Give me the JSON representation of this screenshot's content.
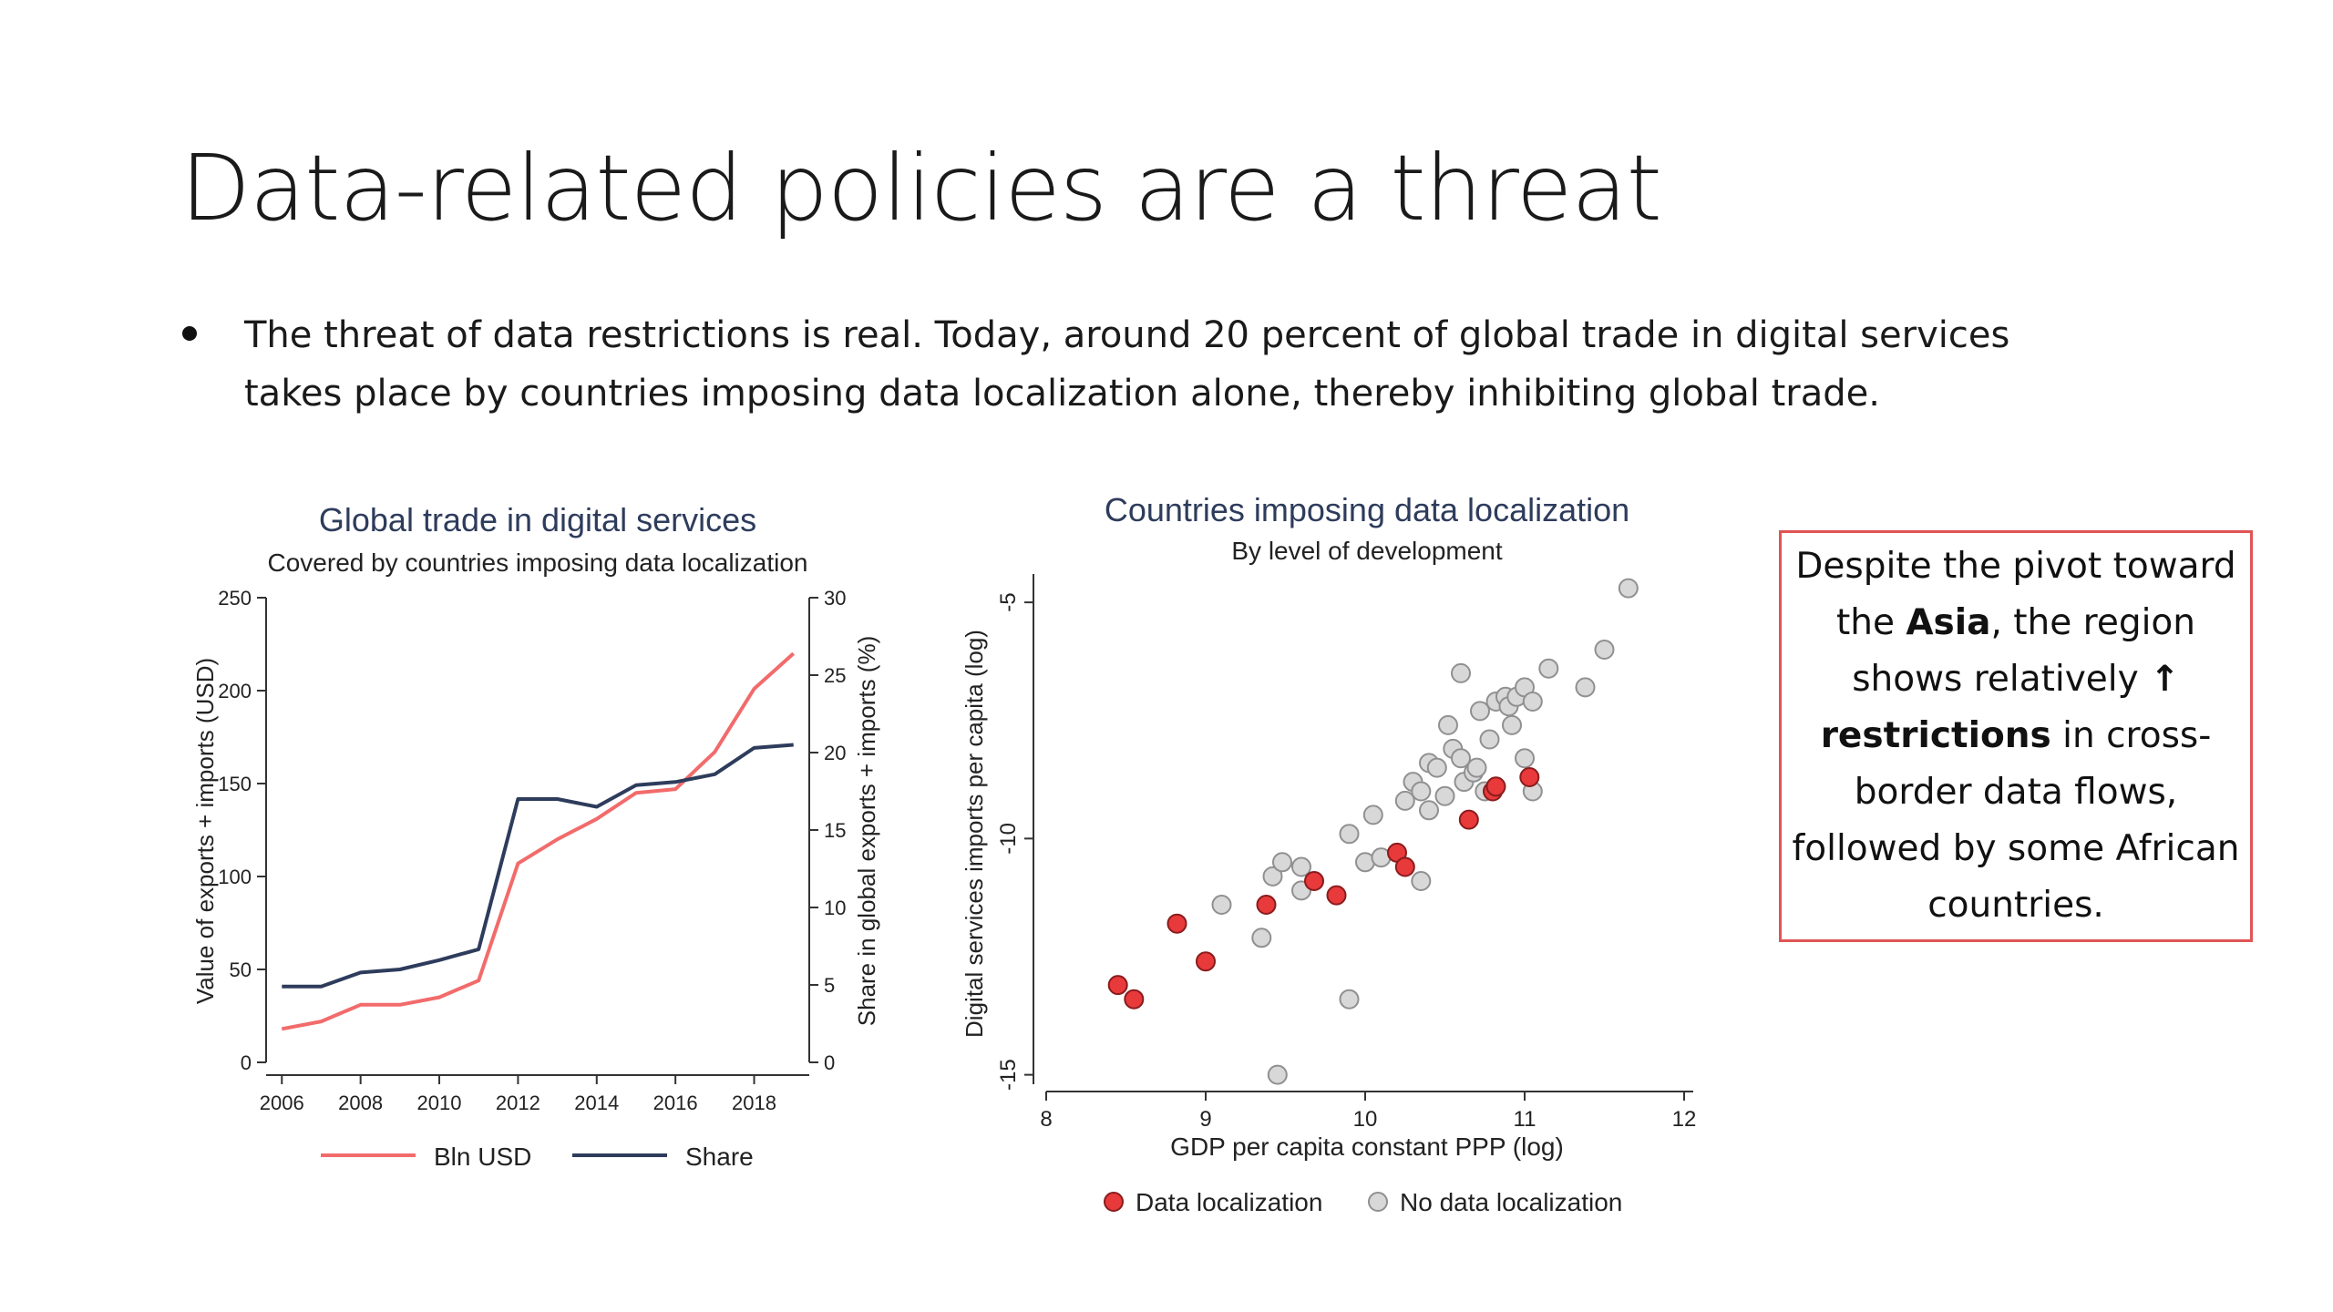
{
  "slide": {
    "title": "Data-related policies are a threat",
    "bullet": "The threat of data restrictions is real. Today, around 20 percent of global trade in digital services takes place by countries imposing data localization alone, thereby inhibiting global trade."
  },
  "callout": {
    "t1": "Despite the pivot toward the ",
    "b1": "Asia",
    "t2": ", the region shows relatively ",
    "arrow": "↑",
    "b2": "restrictions",
    "t3": " in cross-border data flows, followed by some African countries."
  },
  "chart_data": [
    {
      "type": "line",
      "title": "Global trade in digital services",
      "subtitle": "Covered by countries imposing data localization",
      "xlabel": "",
      "ylabel": "Value of exports + imports (USD)",
      "y2label": "Share in global exports + imports (%)",
      "x": [
        2006,
        2007,
        2008,
        2009,
        2010,
        2011,
        2012,
        2013,
        2014,
        2015,
        2016,
        2017,
        2018,
        2019
      ],
      "xticks": [
        2006,
        2008,
        2010,
        2012,
        2014,
        2016,
        2018
      ],
      "xlim": [
        2005.6,
        2019.4
      ],
      "ylim": [
        0,
        250
      ],
      "yticks": [
        0,
        50,
        100,
        150,
        200,
        250
      ],
      "y2lim": [
        0,
        30
      ],
      "y2ticks": [
        0,
        5,
        10,
        15,
        20,
        25,
        30
      ],
      "series": [
        {
          "name": "Bln USD",
          "axis": "left",
          "color": "#f26b6b",
          "values": [
            18,
            22,
            31,
            31,
            35,
            44,
            107,
            120,
            131,
            145,
            147,
            167,
            201,
            220
          ]
        },
        {
          "name": "Share",
          "axis": "right",
          "color": "#2e3c5c",
          "values": [
            4.9,
            4.9,
            5.8,
            6.0,
            6.6,
            7.3,
            17.0,
            17.0,
            16.5,
            17.9,
            18.1,
            18.6,
            20.3,
            20.5
          ]
        }
      ],
      "legend": "bottom",
      "grid": false
    },
    {
      "type": "scatter",
      "title": "Countries imposing data localization",
      "subtitle": "By level of development",
      "xlabel": "GDP per capita constant PPP (log)",
      "ylabel": "Digital services imports per capita (log)",
      "xlim": [
        8,
        12
      ],
      "xticks": [
        8,
        9,
        10,
        11,
        12
      ],
      "ylim": [
        -15.2,
        -4.4
      ],
      "yticks": [
        -15,
        -10,
        -5
      ],
      "series": [
        {
          "name": "Data localization",
          "color": "#e8393b",
          "points": [
            [
              8.45,
              -13.1
            ],
            [
              8.55,
              -13.4
            ],
            [
              8.82,
              -11.8
            ],
            [
              9.0,
              -12.6
            ],
            [
              9.38,
              -11.4
            ],
            [
              9.68,
              -10.9
            ],
            [
              9.82,
              -11.2
            ],
            [
              10.2,
              -10.3
            ],
            [
              10.25,
              -10.6
            ],
            [
              10.65,
              -9.6
            ],
            [
              10.8,
              -9.0
            ],
            [
              10.82,
              -8.9
            ],
            [
              11.03,
              -8.7
            ]
          ]
        },
        {
          "name": "No data localization",
          "color": "#d8d8d8",
          "points": [
            [
              9.45,
              -15.0
            ],
            [
              9.9,
              -13.4
            ],
            [
              9.1,
              -11.4
            ],
            [
              9.35,
              -12.1
            ],
            [
              9.42,
              -10.8
            ],
            [
              9.48,
              -10.5
            ],
            [
              9.6,
              -10.6
            ],
            [
              9.6,
              -11.1
            ],
            [
              9.9,
              -9.9
            ],
            [
              10.0,
              -10.5
            ],
            [
              10.05,
              -9.5
            ],
            [
              10.1,
              -10.4
            ],
            [
              10.35,
              -10.9
            ],
            [
              10.25,
              -9.2
            ],
            [
              10.3,
              -8.8
            ],
            [
              10.35,
              -9.0
            ],
            [
              10.4,
              -9.4
            ],
            [
              10.4,
              -8.4
            ],
            [
              10.45,
              -8.5
            ],
            [
              10.5,
              -9.1
            ],
            [
              10.52,
              -7.6
            ],
            [
              10.55,
              -8.1
            ],
            [
              10.6,
              -8.3
            ],
            [
              10.62,
              -8.8
            ],
            [
              10.68,
              -8.6
            ],
            [
              10.7,
              -8.5
            ],
            [
              10.72,
              -7.3
            ],
            [
              10.75,
              -9.0
            ],
            [
              10.78,
              -7.9
            ],
            [
              10.82,
              -7.1
            ],
            [
              10.88,
              -7.0
            ],
            [
              10.9,
              -7.2
            ],
            [
              10.92,
              -7.6
            ],
            [
              10.95,
              -7.0
            ],
            [
              11.0,
              -6.8
            ],
            [
              11.05,
              -7.1
            ],
            [
              11.0,
              -8.3
            ],
            [
              11.05,
              -9.0
            ],
            [
              10.6,
              -6.5
            ],
            [
              11.15,
              -6.4
            ],
            [
              11.38,
              -6.8
            ],
            [
              11.5,
              -6.0
            ],
            [
              11.65,
              -4.7
            ]
          ]
        }
      ],
      "legend": "bottom",
      "grid": false
    }
  ]
}
